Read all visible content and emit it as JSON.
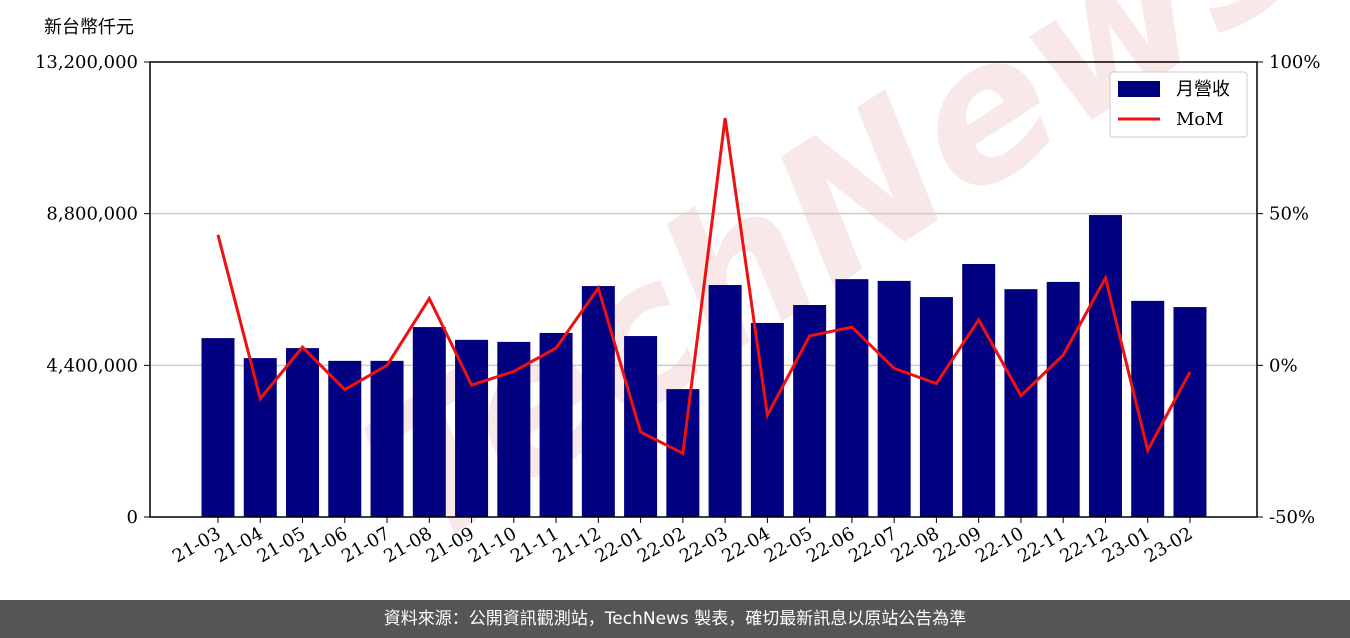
{
  "chart_data": {
    "type": "bar_line",
    "y_axis_label": "新台幣仟元",
    "watermark": "TechNews",
    "categories": [
      "21-03",
      "21-04",
      "21-05",
      "21-06",
      "21-07",
      "21-08",
      "21-09",
      "21-10",
      "21-11",
      "21-12",
      "22-01",
      "22-02",
      "22-03",
      "22-04",
      "22-05",
      "22-06",
      "22-07",
      "22-08",
      "22-09",
      "22-10",
      "22-11",
      "22-12",
      "23-01",
      "23-02"
    ],
    "series": [
      {
        "name": "月營收",
        "type": "bar",
        "color": "#000080",
        "values": [
          5190000,
          4610000,
          4900000,
          4530000,
          4530000,
          5510000,
          5140000,
          5080000,
          5340000,
          6700000,
          5250000,
          3710000,
          6730000,
          5630000,
          6150000,
          6900000,
          6850000,
          6380000,
          7340000,
          6610000,
          6820000,
          8760000,
          6270000,
          6090000
        ]
      },
      {
        "name": "MoM",
        "type": "line",
        "axis": "y2",
        "color": "#ee1111",
        "values": [
          43,
          -11,
          6,
          -8,
          0,
          22,
          -6.5,
          -2,
          5.7,
          25.5,
          -22,
          -29,
          81.5,
          -16.4,
          9.7,
          12.6,
          -1,
          -6,
          15,
          -10,
          3.4,
          28.8,
          -28,
          -2.2
        ]
      }
    ],
    "ylim": [
      0,
      13200000
    ],
    "yticks": [
      0,
      {
        "value": 4400000,
        "label": "4,400,000"
      },
      {
        "value": 8800000,
        "label": "8,800,000"
      },
      {
        "value": 13200000,
        "label": "13,200,000"
      }
    ],
    "y2lim": [
      -50,
      100
    ],
    "y2ticks": [
      {
        "value": -50,
        "label": "-50%"
      },
      {
        "value": 0,
        "label": "0%"
      },
      {
        "value": 50,
        "label": "50%"
      },
      {
        "value": 100,
        "label": "100%"
      }
    ],
    "grid": true,
    "legend": "upper right"
  },
  "footer": "資料來源：公開資訊觀測站，TechNews 製表，確切最新訊息以原站公告為準"
}
